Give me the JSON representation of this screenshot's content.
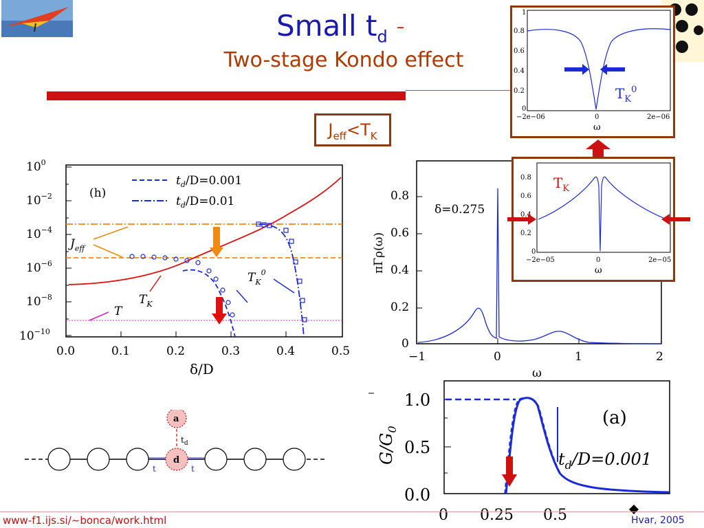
{
  "title": {
    "main": "Small t",
    "sub": "d",
    "dash": "–"
  },
  "subtitle": "Two-stage Kondo effect",
  "jeff_box": {
    "j": "J",
    "sub": "eff",
    "rest": "<T",
    "k": "K"
  },
  "footer": {
    "url": "www-f1.ijs.si/~bonca/work.html",
    "credit": "Hvar, 2005"
  },
  "colors": {
    "title": "#1a1ab0",
    "accent": "#cc1111",
    "frame": "#8b3a0f",
    "curve": "#1a2ad8",
    "orange": "#f08a10"
  },
  "plot_h": {
    "panel_label": "(h)",
    "legend": [
      {
        "t": "t",
        "sub": "d",
        "rest": "/D=0.001"
      },
      {
        "t": "t",
        "sub": "d",
        "rest": "/D=0.01"
      }
    ],
    "xlabel": "δ/D",
    "xticks": [
      "0.0",
      "0.1",
      "0.2",
      "0.3",
      "0.4",
      "0.5"
    ],
    "yticks": [
      "10",
      "10",
      "10",
      "10",
      "10",
      "10"
    ],
    "yexp": [
      "0",
      "−2",
      "−4",
      "−6",
      "−8",
      "−10"
    ],
    "labels": {
      "jeff": "J",
      "jeff_sub": "eff",
      "tk": "T",
      "tk_sub": "K",
      "tk0": "T",
      "tk0_sub": "K",
      "tk0_sup": "0",
      "t": "T"
    }
  },
  "plot_rho": {
    "annotation": "δ=0.275",
    "ylabel": "πΓρ(ω)",
    "xlabel": "ω",
    "xticks": [
      "−1",
      "0",
      "1",
      "2"
    ],
    "yticks": [
      "0",
      "0.2",
      "0.4",
      "0.6",
      "0.8"
    ]
  },
  "inset_top": {
    "xticks": [
      "−2e−06",
      "0",
      "2e−06"
    ],
    "yticks": [
      "0",
      "0.2",
      "0.4",
      "0.6",
      "0.8",
      "1"
    ],
    "xlabel": "ω",
    "label": "T",
    "label_sub": "K",
    "label_sup": "0"
  },
  "inset_mid": {
    "xticks": [
      "−2e−05",
      "0",
      "2e−05"
    ],
    "yticks": [
      "0",
      "0.2",
      "0.4",
      "0.6",
      "0.8"
    ],
    "xlabel": "ω",
    "label": "T",
    "label_sub": "K"
  },
  "plot_g": {
    "ylabel": "G/G",
    "ylabel_sub": "0",
    "yticks": [
      "0.0",
      "0.5",
      "1.0"
    ],
    "xticks": [
      "0",
      "0.25",
      "0.5"
    ],
    "panel_label": "(a)",
    "annotation": {
      "t": "t",
      "sub": "d",
      "rest": "/D=0.001"
    }
  },
  "diagram": {
    "a": "a",
    "d": "d",
    "td": "t",
    "td_sub": "d",
    "t_left": "t",
    "t_right": "t"
  }
}
